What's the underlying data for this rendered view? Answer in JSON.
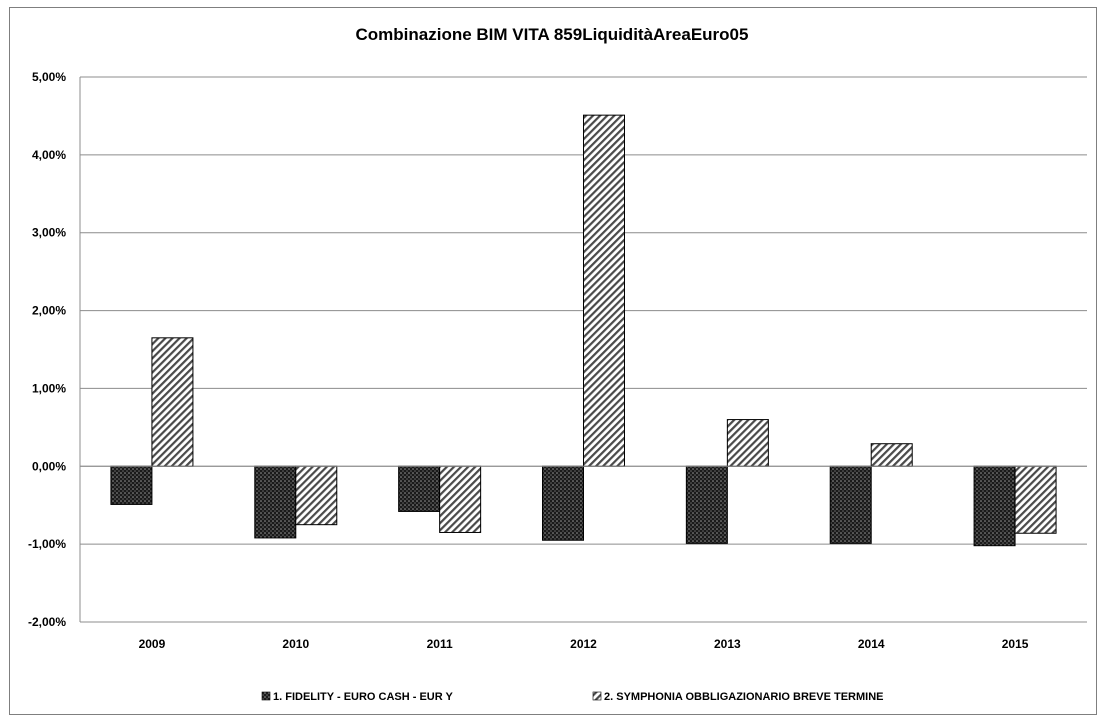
{
  "chart_data": {
    "type": "bar",
    "title": "Combinazione BIM VITA 859LiquiditàAreaEuro05",
    "xlabel": "",
    "ylabel": "",
    "categories": [
      "2009",
      "2010",
      "2011",
      "2012",
      "2013",
      "2014",
      "2015"
    ],
    "series": [
      {
        "name": "1. FIDELITY - EURO CASH - EUR Y",
        "values": [
          -0.49,
          -0.92,
          -0.58,
          -0.95,
          -0.99,
          -0.99,
          -1.02
        ],
        "pattern": "dots",
        "color": "#1a1a1a"
      },
      {
        "name": "2. SYMPHONIA OBBLIGAZIONARIO BREVE TERMINE",
        "values": [
          1.65,
          -0.75,
          -0.85,
          4.51,
          0.6,
          0.29,
          -0.86
        ],
        "pattern": "diagonal-stripes",
        "color": "#ffffff"
      }
    ],
    "ylim": [
      -2,
      5
    ],
    "y_ticks": [
      5,
      4,
      3,
      2,
      1,
      0,
      -1,
      -2
    ],
    "y_tick_labels": [
      "5,00%",
      "4,00%",
      "3,00%",
      "2,00%",
      "1,00%",
      "0,00%",
      "-1,00%",
      "-2,00%"
    ],
    "grid": true,
    "legend_position": "bottom"
  }
}
